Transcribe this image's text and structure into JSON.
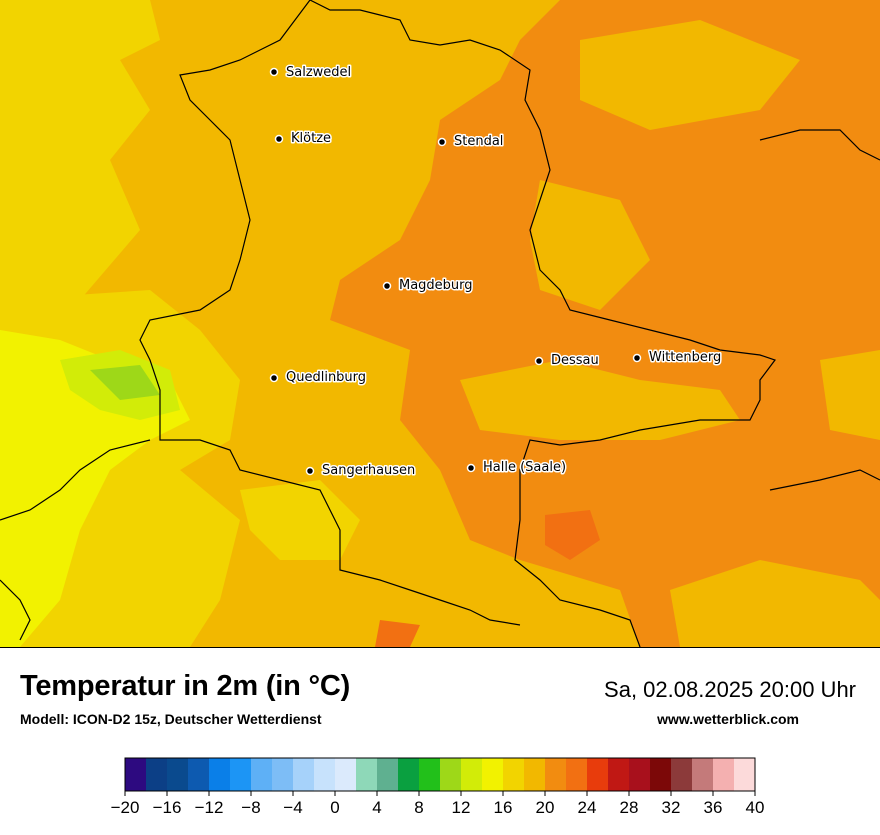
{
  "title": "Temperatur in 2m (in °C)",
  "subtitle": "Modell: ICON-D2 15z, Deutscher Wetterdienst",
  "datetime": "Sa, 02.08.2025 20:00 Uhr",
  "website": "www.wetterblick.com",
  "cities": [
    "Salzwedel",
    "Klötze",
    "Stendal",
    "Magdeburg",
    "Dessau",
    "Wittenberg",
    "Quedlinburg",
    "Sangerhausen",
    "Halle (Saale)"
  ],
  "legend": {
    "ticks": [
      "−20",
      "−16",
      "−12",
      "−8",
      "−4",
      "0",
      "4",
      "8",
      "12",
      "16",
      "20",
      "24",
      "28",
      "32",
      "36",
      "40"
    ],
    "colors": [
      "#2d0a80",
      "#0c3f86",
      "#0a4a8e",
      "#0d5ab0",
      "#0a7fe8",
      "#1c95f5",
      "#5eb0f6",
      "#7dbdf6",
      "#a6d2fa",
      "#c7e2fc",
      "#dbeafc",
      "#8ed8b8",
      "#5fb090",
      "#0aa040",
      "#22c01a",
      "#9ed818",
      "#d2ec08",
      "#f2f200",
      "#f2d400",
      "#f2b800",
      "#f28c10",
      "#f27012",
      "#e83c0c",
      "#c01814",
      "#a8101c",
      "#7c0808",
      "#8c3a3a",
      "#c47a7a",
      "#f4b0b0",
      "#fcdada"
    ]
  },
  "colors": {
    "fill_16_18": "#f2d400",
    "fill_18_20": "#f2b800",
    "fill_20_22": "#f28c10",
    "fill_22_24": "#f27012",
    "fill_14_16": "#f2f200",
    "fill_12_14": "#d2ec08",
    "fill_10_12": "#9ed818"
  }
}
